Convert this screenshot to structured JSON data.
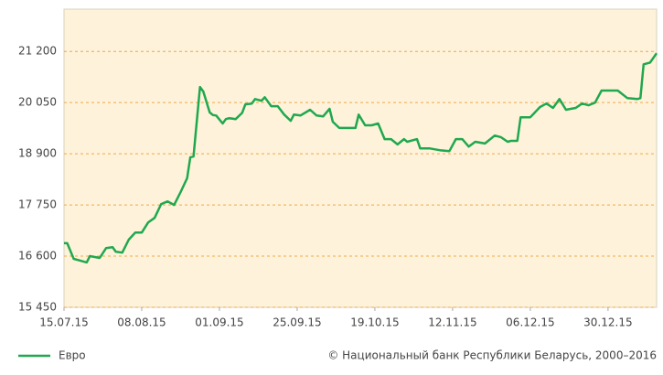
{
  "chart_data": {
    "type": "line",
    "x": [
      "15.07.15",
      "16.07.15",
      "18.07.15",
      "20.07.15",
      "22.07.15",
      "23.07.15",
      "26.07.15",
      "28.07.15",
      "30.07.15",
      "31.07.15",
      "02.08.15",
      "04.08.15",
      "06.08.15",
      "08.08.15",
      "10.08.15",
      "12.08.15",
      "14.08.15",
      "16.08.15",
      "18.08.15",
      "20.08.15",
      "22.08.15",
      "23.08.15",
      "24.08.15",
      "26.08.15",
      "27.08.15",
      "29.08.15",
      "30.08.15",
      "31.08.15",
      "02.09.15",
      "03.09.15",
      "04.09.15",
      "06.09.15",
      "08.09.15",
      "09.09.15",
      "11.09.15",
      "12.09.15",
      "14.09.15",
      "15.09.15",
      "17.09.15",
      "19.09.15",
      "21.09.15",
      "23.09.15",
      "24.09.15",
      "26.09.15",
      "29.09.15",
      "01.10.15",
      "03.10.15",
      "05.10.15",
      "06.10.15",
      "08.10.15",
      "11.10.15",
      "13.10.15",
      "14.10.15",
      "16.10.15",
      "18.10.15",
      "20.10.15",
      "22.10.15",
      "24.10.15",
      "26.10.15",
      "28.10.15",
      "29.10.15",
      "01.11.15",
      "02.11.15",
      "05.11.15",
      "08.11.15",
      "11.11.15",
      "13.11.15",
      "15.11.15",
      "17.11.15",
      "19.11.15",
      "22.11.15",
      "25.11.15",
      "27.11.15",
      "29.11.15",
      "30.11.15",
      "02.12.15",
      "03.12.15",
      "06.12.15",
      "09.12.15",
      "11.12.15",
      "13.12.15",
      "15.12.15",
      "17.12.15",
      "20.12.15",
      "22.12.15",
      "24.12.15",
      "26.12.15",
      "28.12.15",
      "30.12.15",
      "02.01.16",
      "05.01.16",
      "08.01.16",
      "09.01.16",
      "10.01.16",
      "12.01.16",
      "14.01.16"
    ],
    "series": [
      {
        "name": "Евро",
        "color": "#1fa84f",
        "values": [
          16890,
          16890,
          16540,
          16500,
          16460,
          16600,
          16560,
          16780,
          16800,
          16700,
          16680,
          16970,
          17130,
          17130,
          17360,
          17460,
          17770,
          17830,
          17750,
          18040,
          18350,
          18820,
          18840,
          20400,
          20300,
          19830,
          19770,
          19760,
          19580,
          19680,
          19700,
          19680,
          19820,
          20010,
          20030,
          20130,
          20090,
          20170,
          19970,
          19970,
          19780,
          19640,
          19780,
          19760,
          19890,
          19760,
          19740,
          19910,
          19620,
          19480,
          19480,
          19480,
          19780,
          19540,
          19540,
          19580,
          19230,
          19230,
          19110,
          19230,
          19170,
          19230,
          19020,
          19020,
          18980,
          18960,
          19230,
          19230,
          19060,
          19170,
          19130,
          19310,
          19270,
          19170,
          19190,
          19190,
          19720,
          19720,
          19950,
          20030,
          19930,
          20130,
          19890,
          19930,
          20030,
          19990,
          20050,
          20320,
          20320,
          20320,
          20150,
          20130,
          20150,
          20910,
          20950,
          21160
        ]
      }
    ],
    "xlim": [
      "15.07.15",
      "14.01.16"
    ],
    "xticks": [
      "15.07.15",
      "08.08.15",
      "01.09.15",
      "25.09.15",
      "19.10.15",
      "12.11.15",
      "06.12.15",
      "30.12.15"
    ],
    "ylim": [
      15450,
      22150
    ],
    "yticks": [
      {
        "value": 15450,
        "label": "15 450"
      },
      {
        "value": 16600,
        "label": "16 600"
      },
      {
        "value": 17750,
        "label": "17 750"
      },
      {
        "value": 18900,
        "label": "18 900"
      },
      {
        "value": 20050,
        "label": "20 050"
      },
      {
        "value": 21200,
        "label": "21 200"
      }
    ],
    "grid": true,
    "legend": "bottom-left",
    "source": "© Национальный банк Республики Беларусь, 2000–2016"
  }
}
